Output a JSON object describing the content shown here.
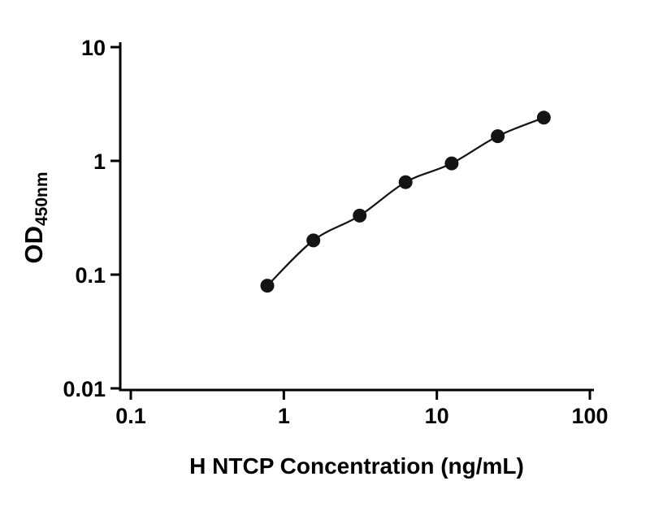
{
  "figure": {
    "background_color": "#ffffff",
    "axis_color": "#000000",
    "point_color": "#141414",
    "curve_color": "#141414"
  },
  "chart_data": {
    "type": "scatter",
    "title": "",
    "xlabel": "H NTCP Concentration (ng/mL)",
    "ylabel_main": "OD",
    "ylabel_sub": "450nm",
    "x_scale": "log",
    "y_scale": "log",
    "xlim": [
      0.1,
      100
    ],
    "ylim": [
      0.01,
      10
    ],
    "grid": false,
    "legend": "none",
    "x_ticks": [
      {
        "v": 0.1,
        "label": "0.1"
      },
      {
        "v": 1,
        "label": "1"
      },
      {
        "v": 10,
        "label": "10"
      },
      {
        "v": 100,
        "label": "100"
      }
    ],
    "y_ticks": [
      {
        "v": 10,
        "label": "10"
      },
      {
        "v": 1,
        "label": "1"
      },
      {
        "v": 0.1,
        "label": "0.1"
      },
      {
        "v": 0.01,
        "label": "0.01"
      }
    ],
    "series": [
      {
        "name": "standard-curve",
        "marker": "filled-circle",
        "curve": "smooth-fit-through-points",
        "points": [
          {
            "x": 0.78,
            "y": 0.08
          },
          {
            "x": 1.56,
            "y": 0.2
          },
          {
            "x": 3.13,
            "y": 0.33
          },
          {
            "x": 6.25,
            "y": 0.65
          },
          {
            "x": 12.5,
            "y": 0.95
          },
          {
            "x": 25,
            "y": 1.65
          },
          {
            "x": 50,
            "y": 2.4
          }
        ]
      }
    ]
  }
}
